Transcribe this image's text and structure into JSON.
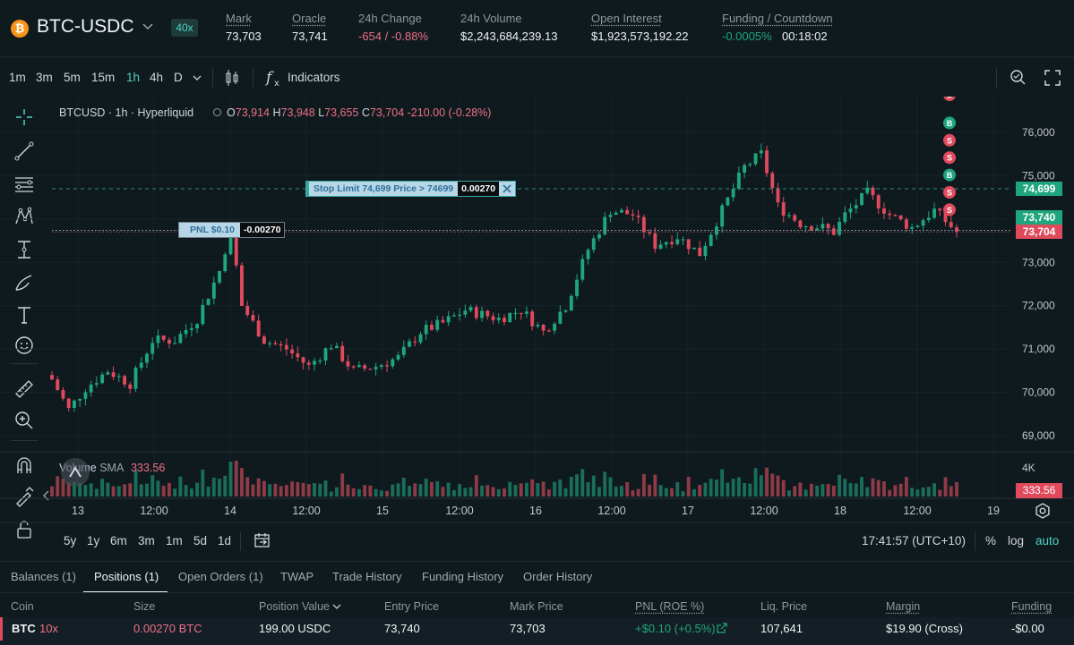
{
  "header": {
    "coin_icon": "bitcoin-icon",
    "pair": "BTC-USDC",
    "leverage": "40x",
    "stats": [
      {
        "label": "Mark",
        "value": "73,703"
      },
      {
        "label": "Oracle",
        "value": "73,741"
      },
      {
        "label": "24h Change",
        "value": "-654 / -0.88%"
      },
      {
        "label": "24h Volume",
        "value": "$2,243,684,239.13"
      },
      {
        "label": "Open Interest",
        "value": "$1,923,573,192.22"
      },
      {
        "label": "Funding / Countdown",
        "value": "-0.0005%",
        "value2": "00:18:02"
      }
    ]
  },
  "toolbar": {
    "timeframes": [
      "1m",
      "3m",
      "5m",
      "15m",
      "1h",
      "4h",
      "D"
    ],
    "active_timeframe": "1h",
    "indicators_label": "Indicators"
  },
  "legend": {
    "symbol": "BTCUSD · 1h · Hyperliquid",
    "o_label": "O",
    "o": "73,914",
    "h_label": "H",
    "h": "73,948",
    "l_label": "L",
    "l": "73,655",
    "c_label": "C",
    "c": "73,704",
    "change": "-210.00 (-0.28%)"
  },
  "orders": {
    "stop_label": "Stop Limit 74,699 Price > 74699",
    "stop_qty": "0.00270",
    "pnl_label": "PNL $0.10",
    "pnl_qty": "-0.00270"
  },
  "volume": {
    "label": "Volume",
    "sma_label": "SMA",
    "sma_value": "333.56",
    "axis_label": "4K",
    "current": "333.56"
  },
  "chart_data": {
    "type": "candlestick",
    "symbol": "BTCUSD",
    "interval": "1h",
    "price_axis": [
      76000,
      75000,
      74000,
      73000,
      72000,
      71000,
      70000,
      69000
    ],
    "price_labels": [
      "76,000",
      "75,000",
      "74,000",
      "73,000",
      "72,000",
      "71,000",
      "70,000",
      "69,000"
    ],
    "time_labels": [
      "13",
      "12:00",
      "14",
      "12:00",
      "15",
      "12:00",
      "16",
      "12:00",
      "17",
      "12:00",
      "18",
      "12:00",
      "19"
    ],
    "ylim": [
      68700,
      76600
    ],
    "price_tags": [
      {
        "value": "74,699",
        "price": 74699,
        "color": "#1fa67d"
      },
      {
        "value": "73,740",
        "price": 73740,
        "color": "#1fa67d"
      },
      {
        "value": "73,704",
        "price": 73704,
        "color": "#e04a5d"
      }
    ],
    "trade_markers": [
      "S",
      "B",
      "S",
      "S",
      "B",
      "S",
      "S"
    ],
    "keypoints": [
      [
        0,
        70300
      ],
      [
        3,
        69600
      ],
      [
        6,
        70100
      ],
      [
        10,
        70500
      ],
      [
        14,
        70200
      ],
      [
        18,
        71200
      ],
      [
        22,
        71200
      ],
      [
        26,
        71700
      ],
      [
        30,
        72800
      ],
      [
        32,
        73800
      ],
      [
        34,
        72000
      ],
      [
        38,
        71200
      ],
      [
        42,
        71000
      ],
      [
        46,
        70600
      ],
      [
        50,
        71100
      ],
      [
        54,
        70500
      ],
      [
        58,
        70600
      ],
      [
        62,
        70800
      ],
      [
        66,
        71400
      ],
      [
        70,
        71600
      ],
      [
        74,
        71900
      ],
      [
        80,
        71700
      ],
      [
        84,
        71900
      ],
      [
        88,
        71400
      ],
      [
        92,
        72000
      ],
      [
        96,
        73300
      ],
      [
        100,
        74200
      ],
      [
        104,
        74100
      ],
      [
        108,
        73400
      ],
      [
        112,
        73600
      ],
      [
        116,
        73200
      ],
      [
        120,
        74200
      ],
      [
        124,
        75200
      ],
      [
        127,
        75500
      ],
      [
        130,
        74300
      ],
      [
        134,
        73900
      ],
      [
        138,
        73800
      ],
      [
        140,
        73700
      ],
      [
        142,
        74100
      ],
      [
        146,
        74600
      ],
      [
        150,
        74100
      ],
      [
        154,
        73800
      ],
      [
        158,
        74200
      ],
      [
        162,
        73704
      ]
    ],
    "candle_count": 163
  },
  "range_bar": {
    "ranges": [
      "5y",
      "1y",
      "6m",
      "3m",
      "1m",
      "5d",
      "1d"
    ],
    "clock": "17:41:57 (UTC+10)",
    "percent": "%",
    "log": "log",
    "auto": "auto"
  },
  "bottom_tabs": [
    "Balances (1)",
    "Positions (1)",
    "Open Orders (1)",
    "TWAP",
    "Trade History",
    "Funding History",
    "Order History"
  ],
  "active_tab": "Positions (1)",
  "positions": {
    "columns": [
      "Coin",
      "Size",
      "Position Value",
      "Entry Price",
      "Mark Price",
      "PNL (ROE %)",
      "Liq. Price",
      "Margin",
      "Funding"
    ],
    "rows": [
      {
        "coin": "BTC",
        "leverage": "10x",
        "size": "0.00270 BTC",
        "value": "199.00 USDC",
        "entry": "73,740",
        "mark": "73,703",
        "pnl": "+$0.10 (+0.5%)",
        "liq": "107,641",
        "margin": "$19.90 (Cross)",
        "funding": "-$0.00"
      }
    ]
  }
}
